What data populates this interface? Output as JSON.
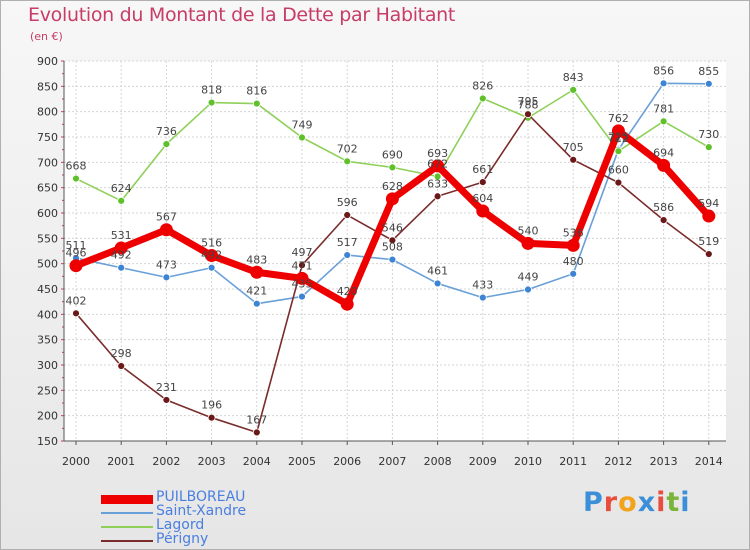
{
  "title": "Evolution du Montant de la Dette par Habitant",
  "subtitle": "(en €)",
  "logo_text": "Proxiti",
  "logo_colors": [
    "#3a8fd8",
    "#e94d3c",
    "#f3a21b",
    "#3a8fd8",
    "#e94d3c",
    "#7ab43a",
    "#3a8fd8"
  ],
  "chart_data": {
    "type": "line",
    "title": "Evolution du Montant de la Dette par Habitant",
    "ylabel": "(en €)",
    "xlabel": "",
    "ylim": [
      150,
      900
    ],
    "yticks": [
      150,
      200,
      250,
      300,
      350,
      400,
      450,
      500,
      550,
      600,
      650,
      700,
      750,
      800,
      850,
      900
    ],
    "grid": true,
    "x": [
      "2000",
      "2001",
      "2002",
      "2003",
      "2004",
      "2005",
      "2006",
      "2007",
      "2008",
      "2009",
      "2010",
      "2011",
      "2012",
      "2013",
      "2014"
    ],
    "legend_position": "bottom-left",
    "series": [
      {
        "name": "PUILBOREAU",
        "color": "#ee0000",
        "values": [
          496,
          531,
          567,
          516,
          483,
          471,
          420,
          628,
          693,
          604,
          540,
          536,
          762,
          694,
          594
        ]
      },
      {
        "name": "Saint-Xandre",
        "color": "#6aa0d8",
        "values": [
          511,
          492,
          473,
          492,
          421,
          435,
          517,
          508,
          461,
          433,
          449,
          480,
          725,
          856,
          855
        ]
      },
      {
        "name": "Lagord",
        "color": "#8ed058",
        "values": [
          668,
          624,
          736,
          818,
          816,
          749,
          702,
          690,
          672,
          826,
          788,
          843,
          722,
          781,
          730
        ]
      },
      {
        "name": "Périgny",
        "color": "#7a2c2c",
        "values": [
          402,
          298,
          231,
          196,
          167,
          497,
          596,
          546,
          633,
          661,
          795,
          705,
          660,
          586,
          519
        ]
      }
    ]
  }
}
